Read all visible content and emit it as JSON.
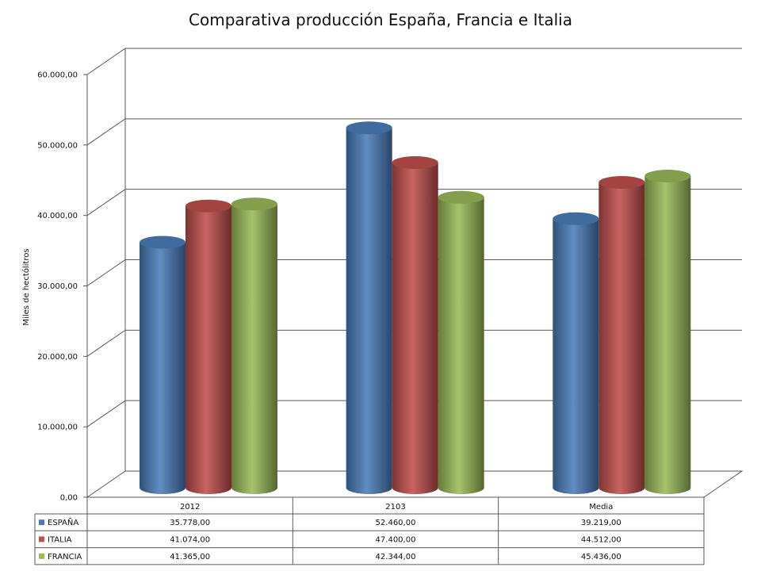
{
  "chart_data": {
    "type": "bar",
    "title": "Comparativa producción España, Francia e Italia",
    "ylabel": "Miles de hectólitros",
    "xlabel": "",
    "ylim": [
      0,
      60000
    ],
    "yticks": [
      "0,00",
      "10.000,00",
      "20.000,00",
      "30.000,00",
      "40.000,00",
      "50.000,00",
      "60.000,00"
    ],
    "ytick_values": [
      0,
      10000,
      20000,
      30000,
      40000,
      50000,
      60000
    ],
    "categories": [
      "2012",
      "2103",
      "Media"
    ],
    "bar_shape": "cylinder-3d",
    "gridlines": true,
    "legend": "data-table",
    "series": [
      {
        "name": "ESPAÑA",
        "color": "#4a7ebb",
        "values": [
          35778,
          52460,
          39219
        ],
        "labels": [
          "35.778,00",
          "52.460,00",
          "39.219,00"
        ]
      },
      {
        "name": "ITALIA",
        "color": "#c0504d",
        "values": [
          41074,
          47400,
          44512
        ],
        "labels": [
          "41.074,00",
          "47.400,00",
          "44.512,00"
        ]
      },
      {
        "name": "FRANCIA",
        "color": "#9bbb59",
        "values": [
          41365,
          42344,
          45436
        ],
        "labels": [
          "41.365,00",
          "42.344,00",
          "45.436,00"
        ]
      }
    ]
  }
}
